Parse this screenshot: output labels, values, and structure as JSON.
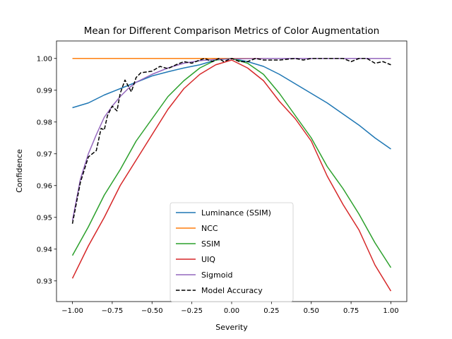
{
  "chart_data": {
    "type": "line",
    "title": "Mean for Different Comparison Metrics of Color Augmentation",
    "xlabel": "Severity",
    "ylabel": "Confidence",
    "xlim": [
      -1.1,
      1.1
    ],
    "ylim": [
      0.9235,
      1.0055
    ],
    "xticks": [
      -1.0,
      -0.75,
      -0.5,
      -0.25,
      0.0,
      0.25,
      0.5,
      0.75,
      1.0
    ],
    "xtick_labels": [
      "−1.00",
      "−0.75",
      "−0.50",
      "−0.25",
      "0.00",
      "0.25",
      "0.50",
      "0.75",
      "1.00"
    ],
    "yticks": [
      0.93,
      0.94,
      0.95,
      0.96,
      0.97,
      0.98,
      0.99,
      1.0
    ],
    "ytick_labels": [
      "0.93",
      "0.94",
      "0.95",
      "0.96",
      "0.97",
      "0.98",
      "0.99",
      "1.00"
    ],
    "grid": false,
    "legend_position": "lower-center",
    "series": [
      {
        "name": "Luminance (SSIM)",
        "color": "#1f77b4",
        "dash": "solid",
        "x": [
          -1.0,
          -0.9,
          -0.8,
          -0.7,
          -0.6,
          -0.5,
          -0.4,
          -0.3,
          -0.2,
          -0.1,
          0.0,
          0.1,
          0.2,
          0.3,
          0.4,
          0.5,
          0.6,
          0.7,
          0.8,
          0.9,
          1.0
        ],
        "y": [
          0.9845,
          0.986,
          0.9885,
          0.9905,
          0.9925,
          0.9945,
          0.9958,
          0.997,
          0.998,
          0.9995,
          1.0,
          0.999,
          0.9975,
          0.995,
          0.992,
          0.989,
          0.986,
          0.9825,
          0.979,
          0.975,
          0.9715
        ]
      },
      {
        "name": "NCC",
        "color": "#ff7f0e",
        "dash": "solid",
        "x": [
          -1.0,
          1.0
        ],
        "y": [
          1.0,
          1.0
        ]
      },
      {
        "name": "SSIM",
        "color": "#2ca02c",
        "dash": "solid",
        "x": [
          -1.0,
          -0.9,
          -0.8,
          -0.7,
          -0.6,
          -0.5,
          -0.4,
          -0.3,
          -0.2,
          -0.1,
          0.0,
          0.1,
          0.2,
          0.3,
          0.4,
          0.5,
          0.6,
          0.7,
          0.8,
          0.9,
          1.0
        ],
        "y": [
          0.938,
          0.947,
          0.957,
          0.965,
          0.974,
          0.981,
          0.988,
          0.993,
          0.997,
          0.9995,
          1.0,
          0.9985,
          0.995,
          0.989,
          0.982,
          0.975,
          0.966,
          0.959,
          0.951,
          0.942,
          0.9342
        ]
      },
      {
        "name": "UIQ",
        "color": "#d62728",
        "dash": "solid",
        "x": [
          -1.0,
          -0.9,
          -0.8,
          -0.7,
          -0.6,
          -0.5,
          -0.4,
          -0.3,
          -0.2,
          -0.1,
          0.0,
          0.1,
          0.2,
          0.3,
          0.4,
          0.5,
          0.6,
          0.7,
          0.8,
          0.9,
          1.0
        ],
        "y": [
          0.9308,
          0.941,
          0.95,
          0.96,
          0.968,
          0.976,
          0.984,
          0.9905,
          0.995,
          0.998,
          0.9995,
          0.997,
          0.993,
          0.9865,
          0.981,
          0.974,
          0.963,
          0.954,
          0.946,
          0.935,
          0.9268
        ]
      },
      {
        "name": "Sigmoid",
        "color": "#9467bd",
        "dash": "solid",
        "x": [
          -1.0,
          -0.95,
          -0.9,
          -0.85,
          -0.8,
          -0.75,
          -0.7,
          -0.65,
          -0.6,
          -0.5,
          -0.4,
          -0.3,
          -0.2,
          -0.1,
          0.0,
          0.25,
          0.5,
          0.75,
          1.0
        ],
        "y": [
          0.949,
          0.962,
          0.97,
          0.976,
          0.9815,
          0.985,
          0.988,
          0.9905,
          0.9925,
          0.995,
          0.997,
          0.9985,
          0.9993,
          0.9997,
          0.9999,
          1.0,
          1.0,
          1.0,
          1.0
        ]
      },
      {
        "name": "Model Accuracy",
        "color": "#000000",
        "dash": "dashed",
        "x": [
          -1.0,
          -0.95,
          -0.9,
          -0.85,
          -0.82,
          -0.8,
          -0.78,
          -0.75,
          -0.72,
          -0.7,
          -0.67,
          -0.63,
          -0.6,
          -0.57,
          -0.5,
          -0.45,
          -0.4,
          -0.35,
          -0.3,
          -0.25,
          -0.2,
          -0.17,
          -0.12,
          -0.08,
          -0.05,
          0.0,
          0.05,
          0.1,
          0.15,
          0.2,
          0.25,
          0.3,
          0.4,
          0.45,
          0.5,
          0.6,
          0.7,
          0.75,
          0.8,
          0.85,
          0.9,
          0.95,
          1.0
        ],
        "y": [
          0.948,
          0.961,
          0.969,
          0.971,
          0.978,
          0.9775,
          0.982,
          0.985,
          0.9835,
          0.989,
          0.9932,
          0.9895,
          0.994,
          0.9955,
          0.996,
          0.9975,
          0.9968,
          0.998,
          0.999,
          0.9985,
          0.9995,
          1.0,
          0.999,
          1.0,
          0.999,
          1.0,
          0.999,
          0.999,
          1.0,
          0.9995,
          0.9995,
          0.9995,
          1.0,
          0.9995,
          1.0,
          1.0,
          1.0,
          0.999,
          1.0,
          1.0,
          0.9985,
          0.999,
          0.998
        ]
      }
    ]
  }
}
